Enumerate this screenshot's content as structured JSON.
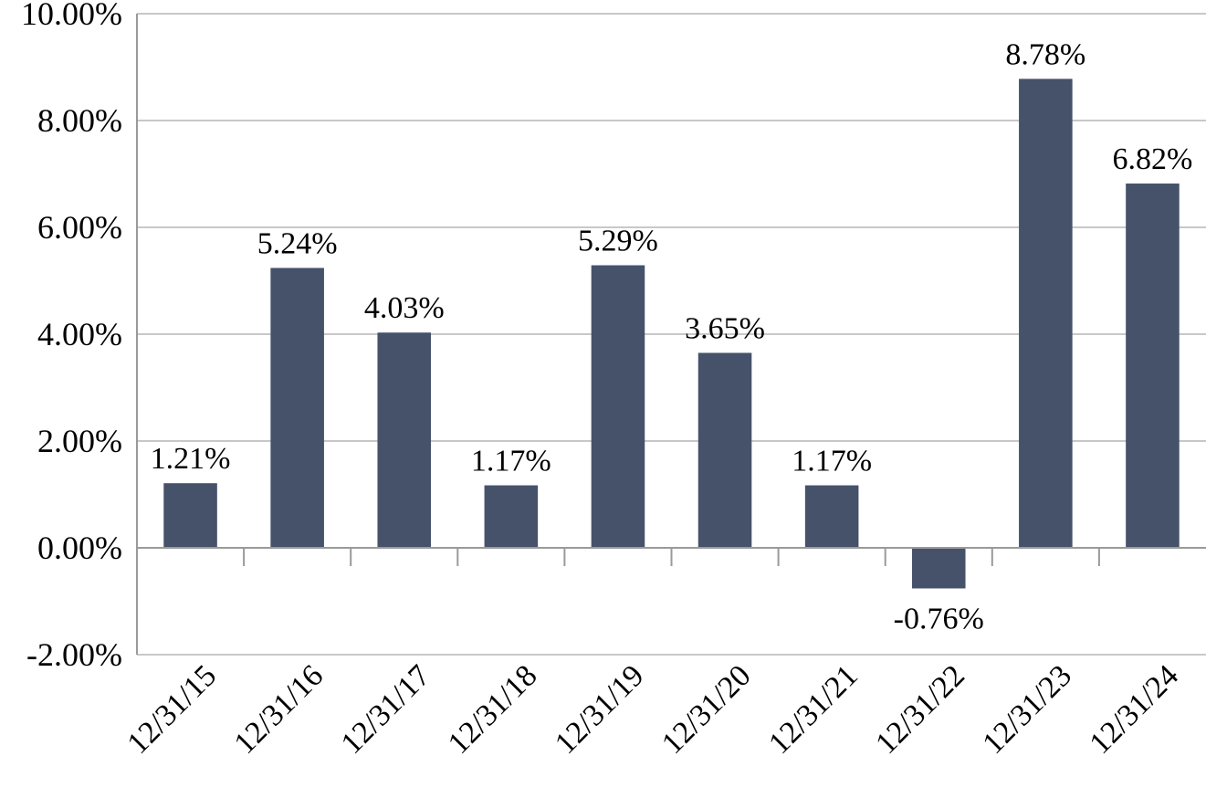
{
  "chart_data": {
    "type": "bar",
    "title": "",
    "xlabel": "",
    "ylabel": "",
    "categories": [
      "12/31/15",
      "12/31/16",
      "12/31/17",
      "12/31/18",
      "12/31/19",
      "12/31/20",
      "12/31/21",
      "12/31/22",
      "12/31/23",
      "12/31/24"
    ],
    "values": [
      1.21,
      5.24,
      4.03,
      1.17,
      5.29,
      3.65,
      1.17,
      -0.76,
      8.78,
      6.82
    ],
    "data_labels": [
      "1.21%",
      "5.24%",
      "4.03%",
      "1.17%",
      "5.29%",
      "3.65%",
      "1.17%",
      "-0.76%",
      "8.78%",
      "6.82%"
    ],
    "ylim": [
      -2,
      10
    ],
    "yticks": [
      -2,
      0,
      2,
      4,
      6,
      8,
      10
    ],
    "ytick_labels": [
      "-2.00%",
      "0.00%",
      "2.00%",
      "4.00%",
      "6.00%",
      "8.00%",
      "10.00%"
    ],
    "grid": true,
    "legend": "none",
    "bar_color": "#45526a"
  }
}
